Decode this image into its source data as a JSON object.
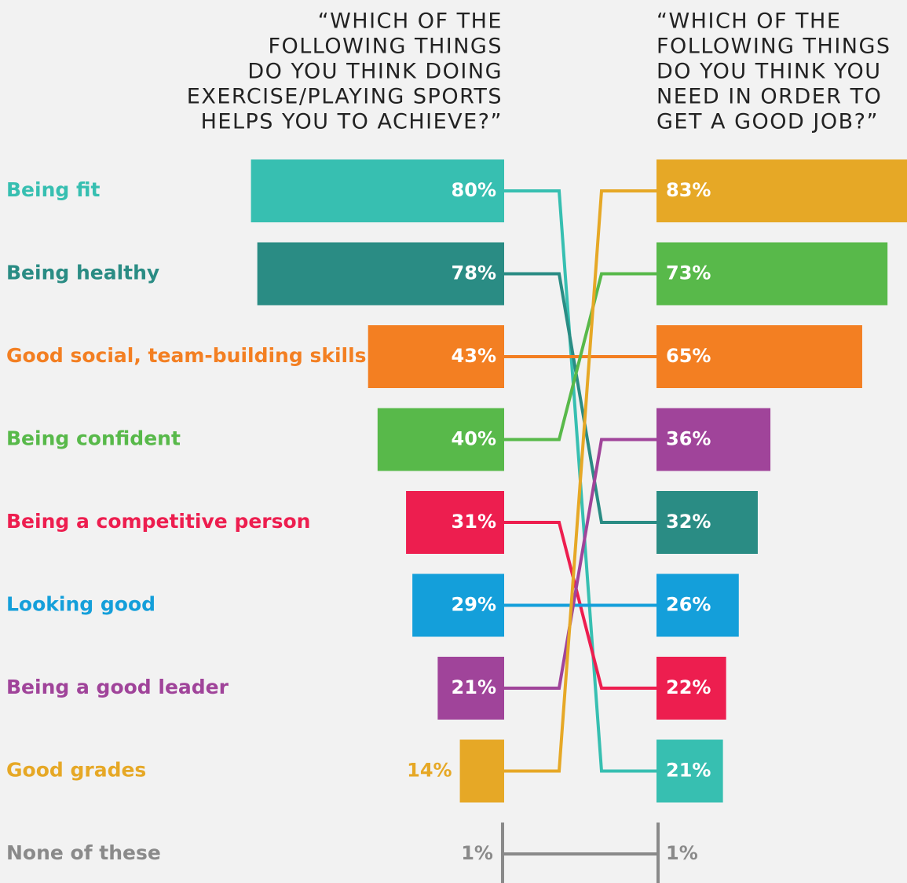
{
  "chart_data": {
    "type": "slope-bars",
    "left_title": [
      "“WHICH OF THE",
      "FOLLOWING THINGS",
      "DO YOU THINK DOING",
      "EXERCISE/PLAYING SPORTS",
      "HELPS YOU TO ACHIEVE?”"
    ],
    "right_title": [
      "“WHICH OF THE",
      "FOLLOWING THINGS",
      "DO YOU THINK YOU",
      "NEED IN ORDER TO",
      "GET A GOOD JOB?”"
    ],
    "categories": [
      "Being fit",
      "Being healthy",
      "Good social, team-building skills",
      "Being confident",
      "Being a competitive person",
      "Looking good",
      "Being a good leader",
      "Good grades",
      "None of these"
    ],
    "colors": [
      "#37bfb1",
      "#2a8c84",
      "#f37f22",
      "#58b94a",
      "#ed1e4f",
      "#149fda",
      "#a0449a",
      "#e6a826",
      "#8a8a8a"
    ],
    "left_values": [
      80,
      78,
      43,
      40,
      31,
      29,
      21,
      14,
      1
    ],
    "left_value_labels": [
      "80%",
      "78%",
      "43%",
      "40%",
      "31%",
      "29%",
      "21%",
      "14%",
      "1%"
    ],
    "right_values": [
      21,
      32,
      65,
      73,
      22,
      26,
      36,
      83,
      1
    ],
    "right_value_labels": [
      "21%",
      "32%",
      "65%",
      "73%",
      "22%",
      "26%",
      "36%",
      "83%",
      "1%"
    ]
  }
}
